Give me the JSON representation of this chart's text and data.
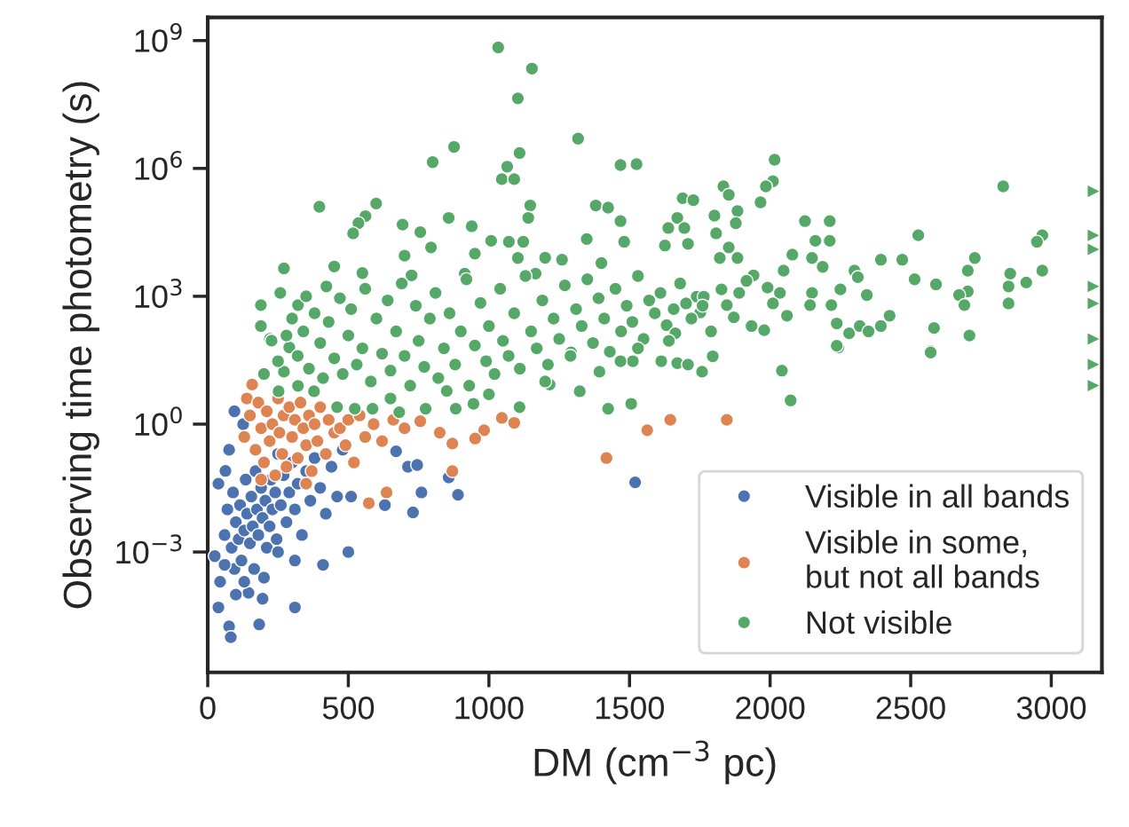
{
  "chart_data": {
    "type": "scatter",
    "xlabel": "DM (cm$^{−3}$ pc)",
    "ylabel": "Observing time photometry (s)",
    "log": "y",
    "grid": false,
    "legend": "bottom right",
    "xlim": [
      0,
      3180
    ],
    "xticks": [
      0,
      500,
      1000,
      1500,
      2000,
      2500,
      3000
    ],
    "ylim": [
      1.5e-06,
      3500000000.0
    ],
    "yticks": [
      {
        "value": 0.001,
        "label": "10$^{−3}$"
      },
      {
        "value": 1,
        "label": "10$^{0}$"
      },
      {
        "value": 1000,
        "label": "10$^{3}$"
      },
      {
        "value": 1000000,
        "label": "10$^{6}$"
      },
      {
        "value": 1000000000,
        "label": "10$^{9}$"
      }
    ],
    "series": [
      {
        "name": "Visible in all bands",
        "color": "#4c72b0",
        "marker": "circle",
        "x": [
          95,
          126,
          76,
          63,
          38,
          25,
          44,
          38,
          76,
          82,
          183,
          195,
          145,
          95,
          310,
          310,
          410,
          500,
          510,
          630,
          670,
          712,
          745,
          730,
          760,
          857,
          890,
          1520,
          60,
          70,
          85,
          90,
          100,
          110,
          115,
          120,
          130,
          135,
          140,
          150,
          155,
          160,
          165,
          170,
          175,
          180,
          190,
          195,
          205,
          210,
          220,
          225,
          230,
          240,
          245,
          250,
          260,
          270,
          280,
          290,
          300,
          310,
          320,
          335,
          350,
          365,
          380,
          400,
          420,
          440,
          460,
          480,
          130,
          100,
          60,
          200,
          250
        ],
        "values": [
          2,
          1,
          0.25,
          0.08,
          0.04,
          0.0008,
          0.0002,
          5e-05,
          1.8e-05,
          1e-05,
          2e-05,
          8e-05,
          0.00011,
          0.0004,
          0.00063,
          5e-05,
          0.0005,
          0.001,
          0.02,
          0.0126,
          0.23,
          0.1,
          0.11,
          0.0085,
          0.025,
          0.056,
          0.022,
          0.043,
          0.0025,
          0.01,
          0.00126,
          0.025,
          0.005,
          0.002,
          0.0126,
          0.00063,
          0.0032,
          0.05,
          0.0079,
          0.0016,
          0.02,
          0.004,
          0.0004,
          0.079,
          0.01,
          0.0025,
          0.032,
          0.0063,
          0.016,
          0.00126,
          0.004,
          0.05,
          0.01,
          0.025,
          0.002,
          0.2,
          0.0126,
          0.063,
          0.005,
          0.025,
          0.126,
          0.01,
          0.04,
          0.0025,
          0.079,
          0.016,
          0.16,
          0.032,
          0.0079,
          0.1,
          0.02,
          0.25,
          0.0002,
          0.0001,
          0.0005,
          0.00025,
          0.001
        ]
      },
      {
        "name": "Visible in some,\nbut not all bands",
        "color": "#dd8452",
        "marker": "circle",
        "x": [
          158,
          139,
          1046,
          1090,
          983,
          951,
          870,
          870,
          636,
          573,
          825,
          756,
          1563,
          1418,
          1645,
          1846,
          130,
          150,
          170,
          180,
          190,
          200,
          210,
          220,
          230,
          240,
          250,
          255,
          265,
          270,
          280,
          290,
          300,
          310,
          320,
          330,
          340,
          350,
          360,
          370,
          380,
          390,
          400,
          420,
          430,
          450,
          470,
          490,
          500,
          520,
          540,
          560,
          590,
          620,
          660,
          700,
          190,
          350
        ],
        "values": [
          8.5,
          4,
          1.4,
          1.07,
          0.72,
          0.46,
          0.35,
          0.079,
          0.025,
          0.014,
          0.63,
          1.17,
          0.72,
          0.16,
          1.26,
          1.26,
          0.5,
          1.6,
          0.25,
          3.2,
          0.8,
          0.126,
          2,
          0.4,
          1,
          0.063,
          4,
          0.63,
          0.2,
          1.6,
          0.1,
          2.5,
          0.5,
          1.26,
          0.16,
          3.2,
          0.8,
          0.32,
          1.6,
          0.079,
          1,
          0.4,
          2.5,
          0.2,
          1.26,
          0.63,
          0.8,
          0.32,
          1.26,
          0.126,
          1.6,
          0.5,
          1,
          0.4,
          1.26,
          0.8,
          0.05,
          0.04
        ]
      },
      {
        "name": "Not visible",
        "color": "#55a868",
        "marker": "circle",
        "x": [
          1033,
          1153,
          1103,
          876,
          800,
          1109,
          1065,
          1046,
          1090,
          1317,
          1468,
          1525,
          397,
          599,
          561,
          536,
          517,
          271,
          258,
          189,
          189,
          221,
          321,
          422,
          693,
          756,
          857,
          794,
          939,
          1147,
          1140,
          1380,
          1424,
          1348,
          1260,
          1468,
          1481,
          914,
          1008,
          1071,
          1122,
          1103,
          1166,
          725,
          2016,
          2010,
          1985,
          1966,
          1834,
          1853,
          1689,
          1727,
          1670,
          1638,
          1695,
          1708,
          1626,
          1802,
          1808,
          1884,
          1878,
          1853,
          1821,
          1884,
          2124,
          2212,
          2161,
          2212,
          2079,
          2149,
          2048,
          2187,
          2527,
          2394,
          2470,
          2728,
          2829,
          2968,
          2949,
          2968,
          2854,
          2911,
          2848,
          2848,
          2703,
          2514,
          2590,
          2703,
          2672,
          2691,
          2300,
          2312,
          2250,
          2344,
          2149,
          2142,
          2218,
          1941,
          1916,
          1991,
          2035,
          2010,
          2060,
          1890,
          1827,
          1846,
          1871,
          1739,
          1764,
          1752,
          1701,
          1657,
          1632,
          1663,
          2394,
          2425,
          2237,
          2281,
          2319,
          2350,
          1934,
          1979,
          2583,
          2709,
          2243,
          2571,
          2237,
          2042,
          2073,
          2571,
          1758,
          1796,
          1613,
          1670,
          1708,
          227,
          290,
          271,
          252,
          321,
          378,
          460,
          523,
          586,
          681,
          775,
          882,
          945,
          1109,
          1216,
          1323,
          1424,
          1506,
          1393,
          1512,
          1468,
          1292,
          320,
          340,
          360,
          380,
          400,
          410,
          430,
          450,
          470,
          480,
          500,
          510,
          530,
          550,
          560,
          580,
          600,
          620,
          640,
          650,
          670,
          690,
          700,
          720,
          740,
          750,
          770,
          790,
          810,
          820,
          840,
          860,
          880,
          900,
          920,
          930,
          950,
          970,
          990,
          1000,
          1020,
          1040,
          1050,
          1070,
          1090,
          1110,
          1130,
          1150,
          1170,
          1190,
          1210,
          1230,
          1250,
          1270,
          1290,
          1310,
          1330,
          1350,
          1370,
          1390,
          1410,
          1430,
          1450,
          1470,
          1490,
          1510,
          1530,
          1550,
          1570,
          1590,
          1610,
          1640,
          1680,
          1720,
          1760,
          1790,
          1530,
          1200,
          1000,
          850,
          650,
          300,
          280,
          350,
          250,
          200,
          550,
          450,
          700,
          950,
          1200,
          1400
        ],
        "values": [
          690000000,
          220000000,
          44000000,
          3200000,
          1400000,
          2300000,
          1100000,
          560000,
          560000,
          5000000,
          1200000,
          1260000,
          126000,
          150000,
          76000,
          52000,
          30000,
          4500,
          1200,
          620,
          200,
          100,
          620,
          1700,
          48000,
          32000,
          69000,
          14000,
          44000,
          135000,
          69000,
          135000,
          120000,
          22000,
          7200,
          58000,
          19000,
          3400,
          20000,
          19000,
          19000,
          7900,
          3400,
          3100,
          1600000,
          500000,
          380000,
          160000,
          380000,
          240000,
          200000,
          180000,
          69000,
          40000,
          40000,
          17000,
          15500,
          78000,
          30000,
          100000,
          52000,
          14000,
          7900,
          7900,
          58000,
          58000,
          20000,
          20000,
          9500,
          7900,
          4000,
          4900,
          27000,
          7200,
          7200,
          7900,
          380000,
          27000,
          19000,
          4000,
          3400,
          2100,
          1700,
          680,
          4000,
          2500,
          1900,
          1300,
          1070,
          620,
          4000,
          2800,
          1450,
          1070,
          1200,
          620,
          620,
          3100,
          2300,
          1600,
          1200,
          680,
          350,
          1200,
          1450,
          620,
          320,
          980,
          980,
          420,
          680,
          500,
          210,
          135,
          200,
          350,
          230,
          135,
          200,
          150,
          200,
          160,
          180,
          120,
          63,
          52,
          69,
          18,
          3.6,
          48,
          17,
          39,
          30,
          27,
          25,
          91,
          63,
          17,
          5.9,
          7.9,
          5.9,
          2.5,
          2.3,
          2.3,
          1.9,
          2.3,
          2.3,
          3,
          2.5,
          8.5,
          5.9,
          2.3,
          3,
          17,
          30,
          30,
          48,
          40,
          150,
          20,
          400,
          80,
          12,
          250,
          35,
          900,
          15,
          120,
          500,
          25,
          60,
          1500,
          10,
          300,
          45,
          800,
          18,
          150,
          2000,
          40,
          8,
          600,
          90,
          22,
          300,
          1200,
          12,
          60,
          400,
          25,
          150,
          2500,
          8,
          70,
          700,
          30,
          200,
          15,
          1500,
          90,
          40,
          400,
          20,
          3000,
          150,
          60,
          800,
          25,
          300,
          100,
          1800,
          40,
          500,
          200,
          2500,
          80,
          900,
          300,
          50,
          1500,
          150,
          600,
          250,
          3000,
          100,
          800,
          400,
          1200,
          90,
          2000,
          300,
          600,
          150,
          60,
          10,
          5,
          6,
          4,
          300,
          120,
          1000,
          30,
          15,
          3500,
          5000,
          9000,
          10000,
          8000,
          6000
        ]
      },
      {
        "color": "#55a868",
        "marker": "triangle",
        "x": [
          3150,
          3150,
          3150,
          3150,
          3150,
          3150,
          3150,
          3150
        ],
        "values": [
          290000,
          27000,
          12600,
          1700,
          680,
          100,
          25,
          8
        ]
      }
    ]
  }
}
